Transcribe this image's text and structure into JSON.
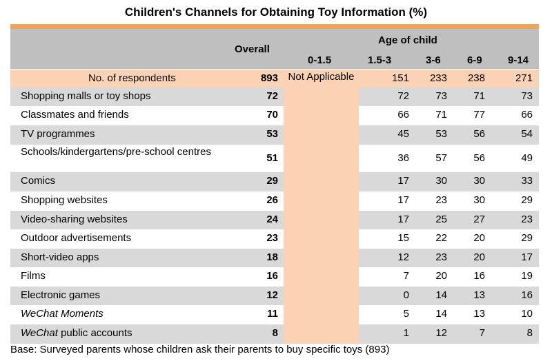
{
  "title": "Children's Channels for Obtaining Toy Information (%)",
  "header": {
    "overall": "Overall",
    "age_of_child": "Age of child",
    "age_groups": [
      "0-1.5",
      "1.5-3",
      "3-6",
      "6-9",
      "9-14"
    ]
  },
  "respondents": {
    "label": "No. of respondents",
    "overall": "893",
    "not_applicable": "Not Applicable",
    "values": [
      "151",
      "233",
      "238",
      "271"
    ]
  },
  "chart_data": {
    "type": "table",
    "title": "Children's Channels for Obtaining Toy Information (%)",
    "columns": [
      "Overall",
      "0-1.5",
      "1.5-3",
      "3-6",
      "6-9",
      "9-14"
    ],
    "rows": [
      {
        "label": "Shopping malls or toy shops",
        "overall": 72,
        "values": [
          72,
          73,
          71,
          73
        ]
      },
      {
        "label": "Classmates and friends",
        "overall": 70,
        "values": [
          66,
          71,
          77,
          66
        ]
      },
      {
        "label": "TV programmes",
        "overall": 53,
        "values": [
          45,
          53,
          56,
          54
        ]
      },
      {
        "label": "Schools/kindergartens/pre-school centres",
        "overall": 51,
        "values": [
          36,
          57,
          56,
          49
        ]
      },
      {
        "label": "Comics",
        "overall": 29,
        "values": [
          17,
          30,
          30,
          33
        ]
      },
      {
        "label": "Shopping websites",
        "overall": 26,
        "values": [
          17,
          23,
          30,
          29
        ]
      },
      {
        "label": "Video-sharing websites",
        "overall": 24,
        "values": [
          17,
          25,
          27,
          23
        ]
      },
      {
        "label": "Outdoor advertisements",
        "overall": 23,
        "values": [
          15,
          22,
          20,
          29
        ]
      },
      {
        "label": "Short-video apps",
        "overall": 18,
        "values": [
          12,
          23,
          20,
          17
        ]
      },
      {
        "label": "Films",
        "overall": 16,
        "values": [
          7,
          20,
          16,
          19
        ]
      },
      {
        "label": "Electronic games",
        "overall": 12,
        "values": [
          0,
          14,
          13,
          16
        ]
      },
      {
        "label": "WeChat Moments",
        "overall": 11,
        "values": [
          5,
          14,
          13,
          10
        ]
      },
      {
        "label": "WeChat public accounts",
        "overall": 8,
        "values": [
          1,
          12,
          7,
          8
        ]
      }
    ]
  },
  "base_note": "Base: Surveyed parents whose children ask their parents to buy specific toys (893)"
}
